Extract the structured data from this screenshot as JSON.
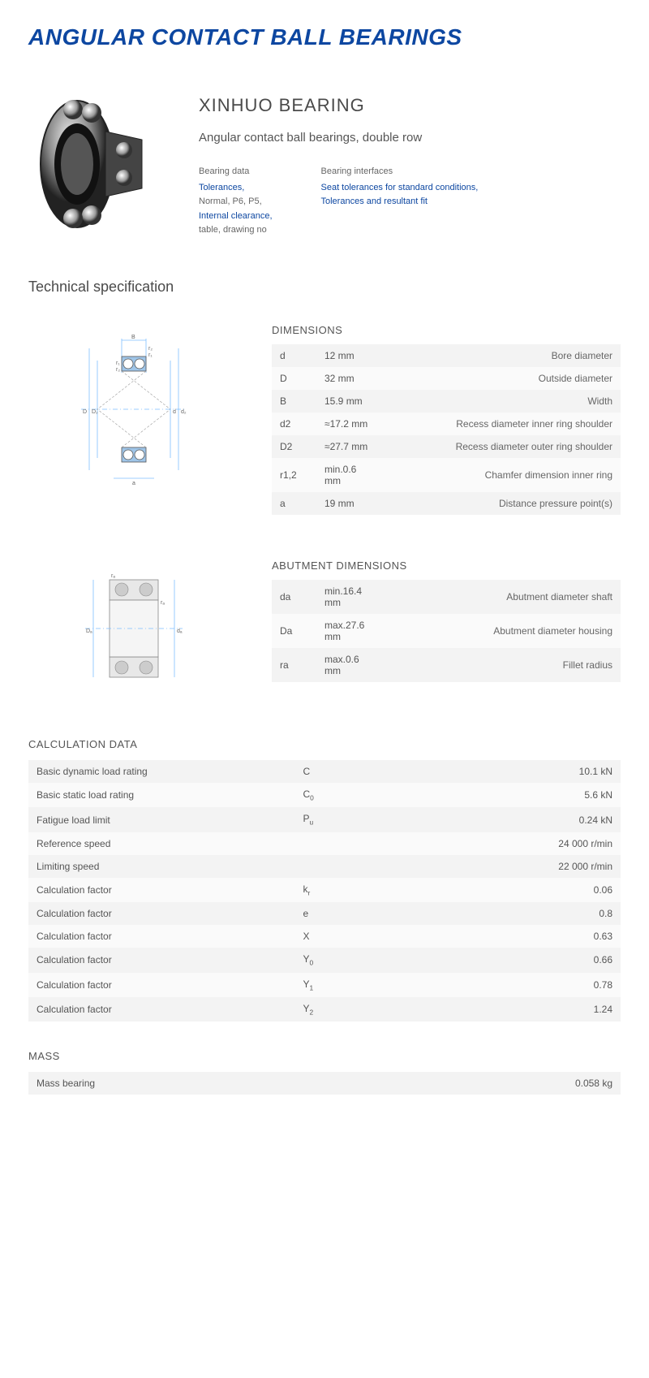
{
  "page": {
    "title": "ANGULAR CONTACT BALL BEARINGS",
    "brand": "XINHUO BEARING",
    "subtitle": "Angular contact ball bearings, double row",
    "info_cols": [
      {
        "head": "Bearing data",
        "lines": [
          {
            "text": "Tolerances,",
            "link": true
          },
          {
            "text": "Normal, P6, P5,",
            "link": false
          },
          {
            "text": "Internal clearance,",
            "link": true
          },
          {
            "text": "table, drawing no",
            "link": false
          }
        ]
      },
      {
        "head": "Bearing interfaces",
        "lines": [
          {
            "text": "Seat tolerances for standard conditions,",
            "link": true
          },
          {
            "text": "Tolerances and resultant fit",
            "link": true
          }
        ]
      }
    ]
  },
  "tech_spec_title": "Technical specification",
  "dimensions": {
    "title": "DIMENSIONS",
    "rows": [
      {
        "sym": "d",
        "val": "12  mm",
        "desc": "Bore diameter"
      },
      {
        "sym": "D",
        "val": "32  mm",
        "desc": "Outside diameter"
      },
      {
        "sym": "B",
        "val": "15.9  mm",
        "desc": "Width"
      },
      {
        "sym": "d2",
        "val": "≈17.2 mm",
        "desc": "Recess diameter inner ring shoulder"
      },
      {
        "sym": "D2",
        "val": "≈27.7 mm",
        "desc": "Recess diameter outer ring shoulder"
      },
      {
        "sym": "r1,2",
        "val": "min.0.6 mm",
        "desc": "Chamfer dimension inner ring"
      },
      {
        "sym": "a",
        "val": "19  mm",
        "desc": "Distance pressure point(s)"
      }
    ]
  },
  "abutment": {
    "title": "ABUTMENT DIMENSIONS",
    "rows": [
      {
        "sym": "da",
        "val": "min.16.4 mm",
        "desc": "Abutment diameter shaft"
      },
      {
        "sym": "Da",
        "val": "max.27.6 mm",
        "desc": "Abutment diameter housing"
      },
      {
        "sym": "ra",
        "val": "max.0.6 mm",
        "desc": "Fillet radius"
      }
    ]
  },
  "calculation": {
    "title": "CALCULATION DATA",
    "rows": [
      {
        "label": "Basic dynamic load rating",
        "sym": "C",
        "val": "10.1  kN"
      },
      {
        "label": "Basic static load rating",
        "sym": "C<sub>0</sub>",
        "val": "5.6  kN"
      },
      {
        "label": "Fatigue load limit",
        "sym": "P<sub>u</sub>",
        "val": "0.24  kN"
      },
      {
        "label": "Reference speed",
        "sym": "",
        "val": "24 000  r/min"
      },
      {
        "label": "Limiting speed",
        "sym": "",
        "val": "22 000  r/min"
      },
      {
        "label": "Calculation factor",
        "sym": "k<sub>r</sub>",
        "val": "0.06"
      },
      {
        "label": "Calculation factor",
        "sym": "e",
        "val": "0.8"
      },
      {
        "label": "Calculation factor",
        "sym": "X",
        "val": "0.63"
      },
      {
        "label": "Calculation factor",
        "sym": "Y<sub>0</sub>",
        "val": "0.66"
      },
      {
        "label": "Calculation factor",
        "sym": "Y<sub>1</sub>",
        "val": "0.78"
      },
      {
        "label": "Calculation factor",
        "sym": "Y<sub>2</sub>",
        "val": "1.24"
      }
    ]
  },
  "mass": {
    "title": "MASS",
    "rows": [
      {
        "label": "Mass bearing",
        "val": "0.058  kg"
      }
    ]
  },
  "colors": {
    "title": "#0d47a1",
    "link": "#0d47a1",
    "row_odd": "#f3f3f3",
    "row_even": "#fafafa",
    "diagram_blue": "#9fc5e8",
    "diagram_line": "#7fbfff"
  }
}
